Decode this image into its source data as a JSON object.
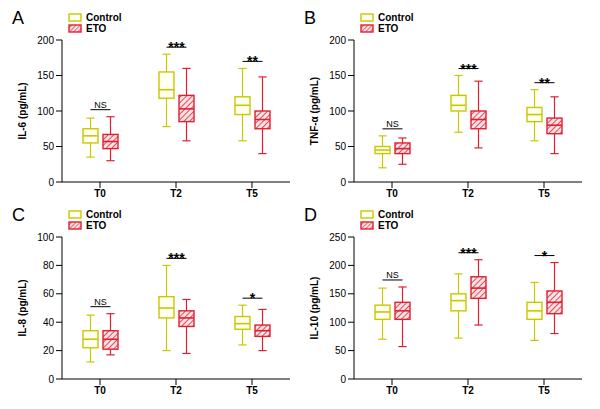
{
  "chart_data": [
    {
      "type": "box",
      "title": "A",
      "ylabel": "IL-6 (pg/mL)",
      "categories": [
        "T0",
        "T2",
        "T5"
      ],
      "ylim": [
        0,
        200
      ],
      "yticks": [
        0,
        50,
        100,
        150,
        200
      ],
      "grid": false,
      "legend": "upper left",
      "series": [
        {
          "name": "Control",
          "color": "#c8c800",
          "values": [
            {
              "min": 35,
              "q1": 55,
              "median": 65,
              "q3": 75,
              "max": 90
            },
            {
              "min": 78,
              "q1": 118,
              "median": 130,
              "q3": 155,
              "max": 180
            },
            {
              "min": 58,
              "q1": 95,
              "median": 108,
              "q3": 120,
              "max": 160
            }
          ]
        },
        {
          "name": "ETO",
          "color": "#e02030",
          "values": [
            {
              "min": 30,
              "q1": 47,
              "median": 57,
              "q3": 67,
              "max": 92
            },
            {
              "min": 58,
              "q1": 85,
              "median": 103,
              "q3": 122,
              "max": 160
            },
            {
              "min": 40,
              "q1": 75,
              "median": 88,
              "q3": 100,
              "max": 148
            }
          ]
        }
      ],
      "annotations": [
        "NS",
        "***",
        "**"
      ]
    },
    {
      "type": "box",
      "title": "B",
      "ylabel": "TNF-α (pg/mL)",
      "categories": [
        "T0",
        "T2",
        "T5"
      ],
      "ylim": [
        0,
        200
      ],
      "yticks": [
        0,
        50,
        100,
        150,
        200
      ],
      "grid": false,
      "legend": "upper left",
      "series": [
        {
          "name": "Control",
          "color": "#c8c800",
          "values": [
            {
              "min": 20,
              "q1": 40,
              "median": 45,
              "q3": 50,
              "max": 65
            },
            {
              "min": 70,
              "q1": 100,
              "median": 108,
              "q3": 122,
              "max": 150
            },
            {
              "min": 58,
              "q1": 85,
              "median": 95,
              "q3": 105,
              "max": 130
            }
          ]
        },
        {
          "name": "ETO",
          "color": "#e02030",
          "values": [
            {
              "min": 25,
              "q1": 40,
              "median": 47,
              "q3": 55,
              "max": 62
            },
            {
              "min": 48,
              "q1": 75,
              "median": 88,
              "q3": 100,
              "max": 142
            },
            {
              "min": 40,
              "q1": 68,
              "median": 80,
              "q3": 90,
              "max": 120
            }
          ]
        }
      ],
      "annotations": [
        "NS",
        "***",
        "**"
      ]
    },
    {
      "type": "box",
      "title": "C",
      "ylabel": "IL-8 (pg/mL)",
      "categories": [
        "T0",
        "T2",
        "T5"
      ],
      "ylim": [
        0,
        100
      ],
      "yticks": [
        0,
        20,
        40,
        60,
        80,
        100
      ],
      "grid": false,
      "legend": "upper left",
      "series": [
        {
          "name": "Control",
          "color": "#c8c800",
          "values": [
            {
              "min": 12,
              "q1": 22,
              "median": 28,
              "q3": 34,
              "max": 45
            },
            {
              "min": 20,
              "q1": 43,
              "median": 50,
              "q3": 58,
              "max": 80
            },
            {
              "min": 24,
              "q1": 35,
              "median": 39,
              "q3": 44,
              "max": 52
            }
          ]
        },
        {
          "name": "ETO",
          "color": "#e02030",
          "values": [
            {
              "min": 17,
              "q1": 21,
              "median": 28,
              "q3": 34,
              "max": 46
            },
            {
              "min": 18,
              "q1": 37,
              "median": 43,
              "q3": 48,
              "max": 56
            },
            {
              "min": 20,
              "q1": 30,
              "median": 34,
              "q3": 38,
              "max": 49
            }
          ]
        }
      ],
      "annotations": [
        "NS",
        "***",
        "*"
      ]
    },
    {
      "type": "box",
      "title": "D",
      "ylabel": "IL-10 (pg/mL)",
      "categories": [
        "T0",
        "T2",
        "T5"
      ],
      "ylim": [
        0,
        250
      ],
      "yticks": [
        0,
        50,
        100,
        150,
        200,
        250
      ],
      "grid": false,
      "legend": "upper left",
      "series": [
        {
          "name": "Control",
          "color": "#c8c800",
          "values": [
            {
              "min": 70,
              "q1": 105,
              "median": 118,
              "q3": 130,
              "max": 160
            },
            {
              "min": 72,
              "q1": 120,
              "median": 138,
              "q3": 150,
              "max": 185
            },
            {
              "min": 68,
              "q1": 105,
              "median": 120,
              "q3": 135,
              "max": 170
            }
          ]
        },
        {
          "name": "ETO",
          "color": "#e02030",
          "values": [
            {
              "min": 57,
              "q1": 105,
              "median": 120,
              "q3": 135,
              "max": 162
            },
            {
              "min": 95,
              "q1": 142,
              "median": 160,
              "q3": 180,
              "max": 210
            },
            {
              "min": 80,
              "q1": 115,
              "median": 135,
              "q3": 155,
              "max": 205
            }
          ]
        }
      ],
      "annotations": [
        "NS",
        "***",
        "*"
      ]
    }
  ]
}
